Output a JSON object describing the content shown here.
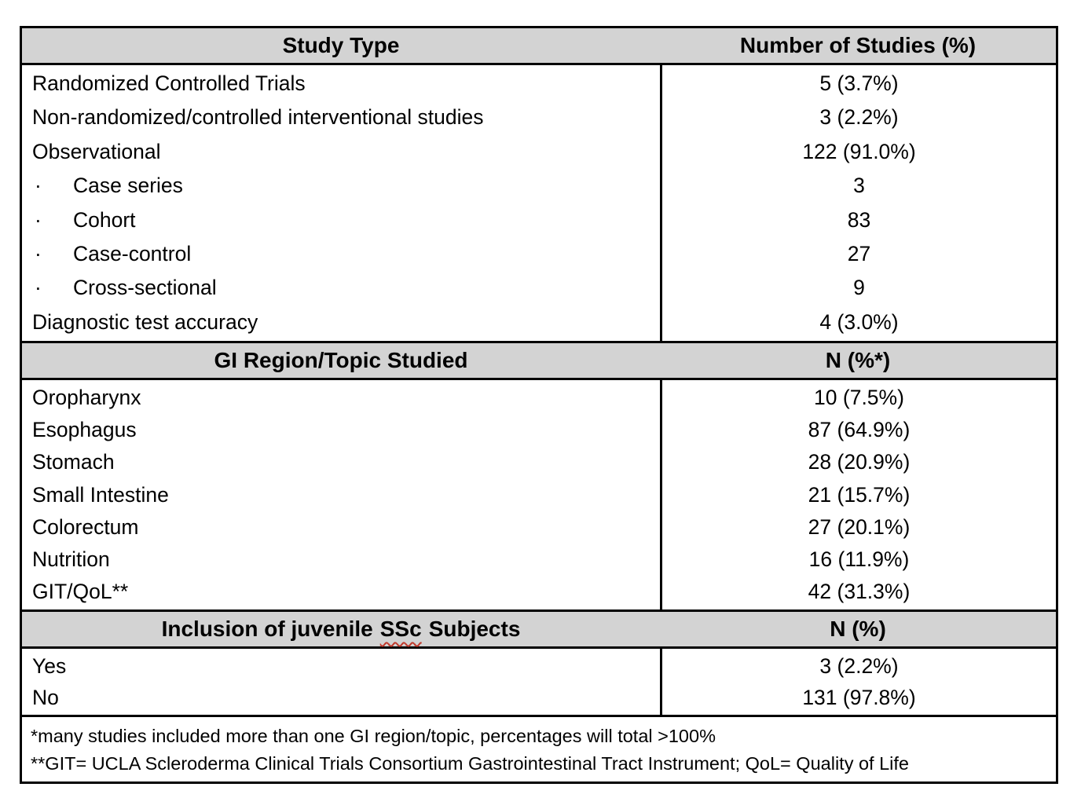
{
  "table": {
    "bullet_char": "·",
    "sections": [
      {
        "header": {
          "col1": "Study Type",
          "col2": "Number of Studies (%)"
        },
        "rows": [
          {
            "label": "Randomized Controlled Trials",
            "value": "5 (3.7%)"
          },
          {
            "label": "Non-randomized/controlled interventional studies",
            "value": "3 (2.2%)"
          },
          {
            "label": "Observational",
            "value": "122 (91.0%)"
          },
          {
            "label": "Case series",
            "value": "3",
            "bullet": true
          },
          {
            "label": "Cohort",
            "value": "83",
            "bullet": true
          },
          {
            "label": "Case-control",
            "value": "27",
            "bullet": true
          },
          {
            "label": "Cross-sectional",
            "value": "9",
            "bullet": true
          },
          {
            "label": "Diagnostic test accuracy",
            "value": "4 (3.0%)"
          }
        ]
      },
      {
        "header": {
          "col1": "GI Region/Topic Studied",
          "col2": "N (%*)"
        },
        "rows": [
          {
            "label": "Oropharynx",
            "value": "10 (7.5%)"
          },
          {
            "label": "Esophagus",
            "value": "87 (64.9%)"
          },
          {
            "label": "Stomach",
            "value": "28 (20.9%)"
          },
          {
            "label": "Small Intestine",
            "value": "21 (15.7%)"
          },
          {
            "label": "Colorectum",
            "value": "27 (20.1%)"
          },
          {
            "label": "Nutrition",
            "value": "16 (11.9%)"
          },
          {
            "label": "GIT/QoL**",
            "value": "42 (31.3%)"
          }
        ]
      },
      {
        "header": {
          "col1_part1": "Inclusion of juvenile",
          "col1_misspelled": "SSc",
          "col1_part2": "Subjects",
          "col2": "N (%)"
        },
        "rows": [
          {
            "label": "Yes",
            "value": "3 (2.2%)"
          },
          {
            "label": "No",
            "value": "131 (97.8%)"
          }
        ]
      }
    ],
    "footnotes": [
      "*many studies included more than one GI region/topic, percentages will total >100%",
      "**GIT= UCLA Scleroderma Clinical Trials Consortium Gastrointestinal Tract Instrument; QoL= Quality of Life"
    ],
    "colors": {
      "header_background": "#d3d3d3",
      "border": "#000000",
      "spellcheck_underline": "#c0392b"
    }
  }
}
